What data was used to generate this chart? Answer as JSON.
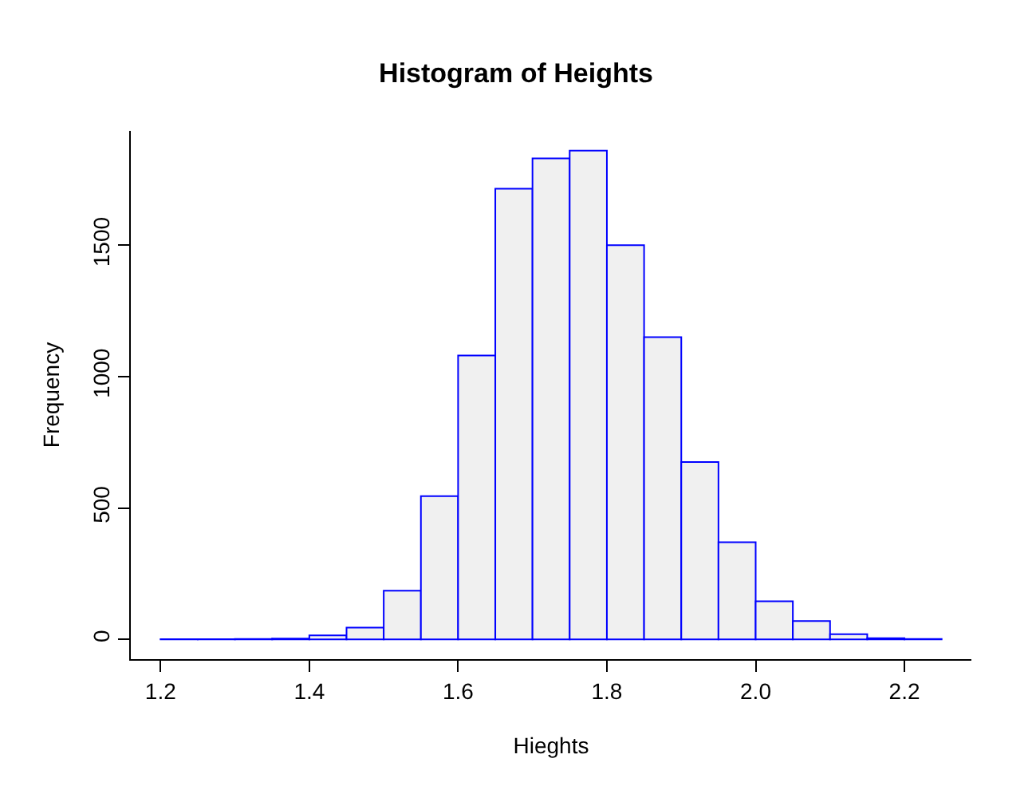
{
  "chart_data": {
    "type": "histogram",
    "title": "Histogram of Heights",
    "xlabel": "Hieghts",
    "ylabel": "Frequency",
    "bins": [
      1.2,
      1.25,
      1.3,
      1.35,
      1.4,
      1.45,
      1.5,
      1.55,
      1.6,
      1.65,
      1.7,
      1.75,
      1.8,
      1.85,
      1.9,
      1.95,
      2.0,
      2.05,
      2.1,
      2.15,
      2.2,
      2.25
    ],
    "values": [
      1,
      1,
      2,
      3,
      15,
      45,
      185,
      545,
      1080,
      1715,
      1830,
      1860,
      1500,
      1150,
      675,
      370,
      145,
      70,
      20,
      5,
      2
    ],
    "color": "#f0f0f0",
    "xlim": [
      1.16,
      2.29
    ],
    "xticks": [
      1.2,
      1.4,
      1.6,
      1.8,
      {
        "value": 2,
        "label": "2.0"
      },
      2.2
    ],
    "ylim": [
      -75,
      1935
    ],
    "yticks": [
      0,
      500,
      1000,
      1500
    ],
    "grid": false
  }
}
